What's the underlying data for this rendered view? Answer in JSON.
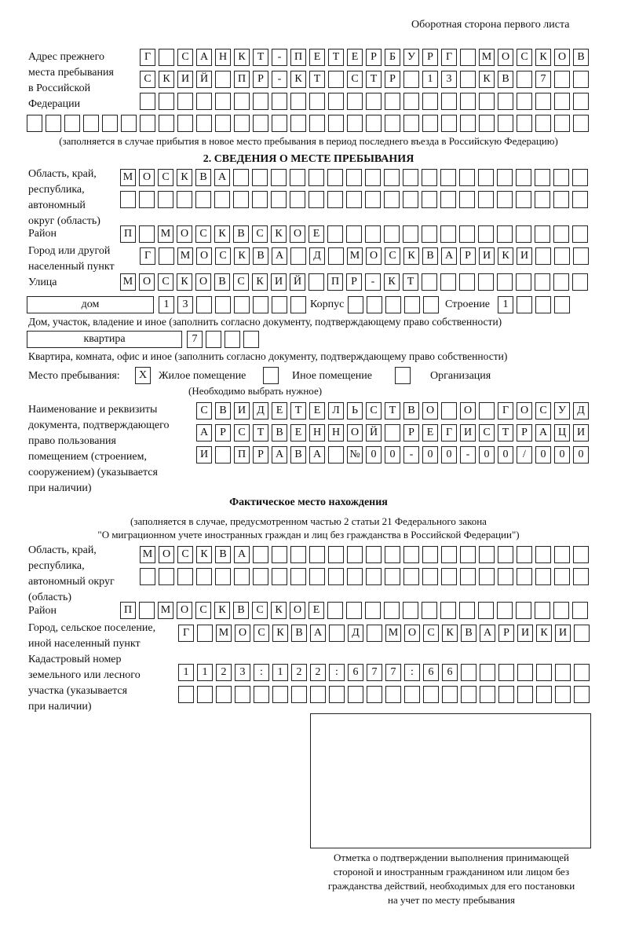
{
  "header": "Оборотная сторона первого листа",
  "prev_address": {
    "label": [
      "Адрес прежнего",
      "места пребывания",
      "в Российской",
      "Федерации"
    ],
    "rows": [
      "Г САНКТ-ПЕТЕРБУРГ МОСКОВ",
      "СКИЙ ПР-КТ СТР 13 КВ 7",
      "",
      ""
    ],
    "note": "(заполняется в случае прибытия в новое место пребывания в период последнего въезда в Российскую Федерацию)"
  },
  "section2": {
    "title": "2. СВЕДЕНИЯ О МЕСТЕ ПРЕБЫВАНИЯ",
    "region_label": [
      "Область, край,",
      "республика,",
      "автономный",
      "округ (область)"
    ],
    "region_rows": [
      "МОСКВА",
      ""
    ],
    "district_label": "Район",
    "district": "П МОСКВСКОЕ",
    "city_label": [
      "Город или другой",
      "населенный пункт"
    ],
    "city": "Г МОСКВА Д МОСКВАРИКИ",
    "street_label": "Улица",
    "street": "МОСКОВСКИЙ ПР-КТ",
    "house_type": "дом",
    "house": "13",
    "korpus_label": "Корпус",
    "korpus": "",
    "building_label": "Строение",
    "building": "1",
    "house_note": "Дом, участок, владение и иное (заполнить согласно документу, подтверждающему право собственности)",
    "apt_type": "квартира",
    "apt": "7",
    "apt_note": "Квартира, комната, офис и иное (заполнить согласно документу, подтверждающему право собственности)",
    "stay_label": "Место пребывания:",
    "stay_options": [
      {
        "label": "Жилое помещение",
        "mark": "Х"
      },
      {
        "label": "Иное помещение",
        "mark": ""
      },
      {
        "label": "Организация",
        "mark": ""
      }
    ],
    "stay_note": "(Необходимо выбрать нужное)",
    "doc_label": [
      "Наименование и реквизиты",
      "документа, подтверждающего",
      "право пользования",
      "помещением (строением,",
      "сооружением) (указывается",
      "при наличии)"
    ],
    "doc_rows": [
      "СВИДЕТЕЛЬСТВО О ГОСУД",
      "АРСТВЕННОЙ РЕГИСТРАЦИ",
      "И ПРАВА №00-00-00/000"
    ]
  },
  "actual": {
    "title": "Фактическое место нахождения",
    "note": [
      "(заполняется в случае, предусмотренном частью 2 статьи 21 Федерального закона",
      "\"О миграционном учете иностранных граждан и лиц без гражданства в Российской Федерации\")"
    ],
    "region_label": [
      "Область, край,",
      "республика,",
      "автономный округ",
      "(область)"
    ],
    "region_rows": [
      "МОСКВА",
      ""
    ],
    "district_label": "Район",
    "district": "П МОСКВСКОЕ",
    "city_label": [
      "Город, сельское поселение,",
      "иной населенный пункт"
    ],
    "city": "Г МОСКВА Д МОСКВАРИКИ",
    "cadastre_label": [
      "Кадастровый номер",
      "земельного или лесного",
      "участка (указывается",
      "при наличии)"
    ],
    "cadastre_rows": [
      "1123:122:677:66",
      ""
    ]
  },
  "stamp_caption": [
    "Отметка о подтверждении выполнения принимающей",
    "стороной и иностранным гражданином или лицом без",
    "гражданства действий, необходимых для его постановки",
    "на учет по месту пребывания"
  ]
}
